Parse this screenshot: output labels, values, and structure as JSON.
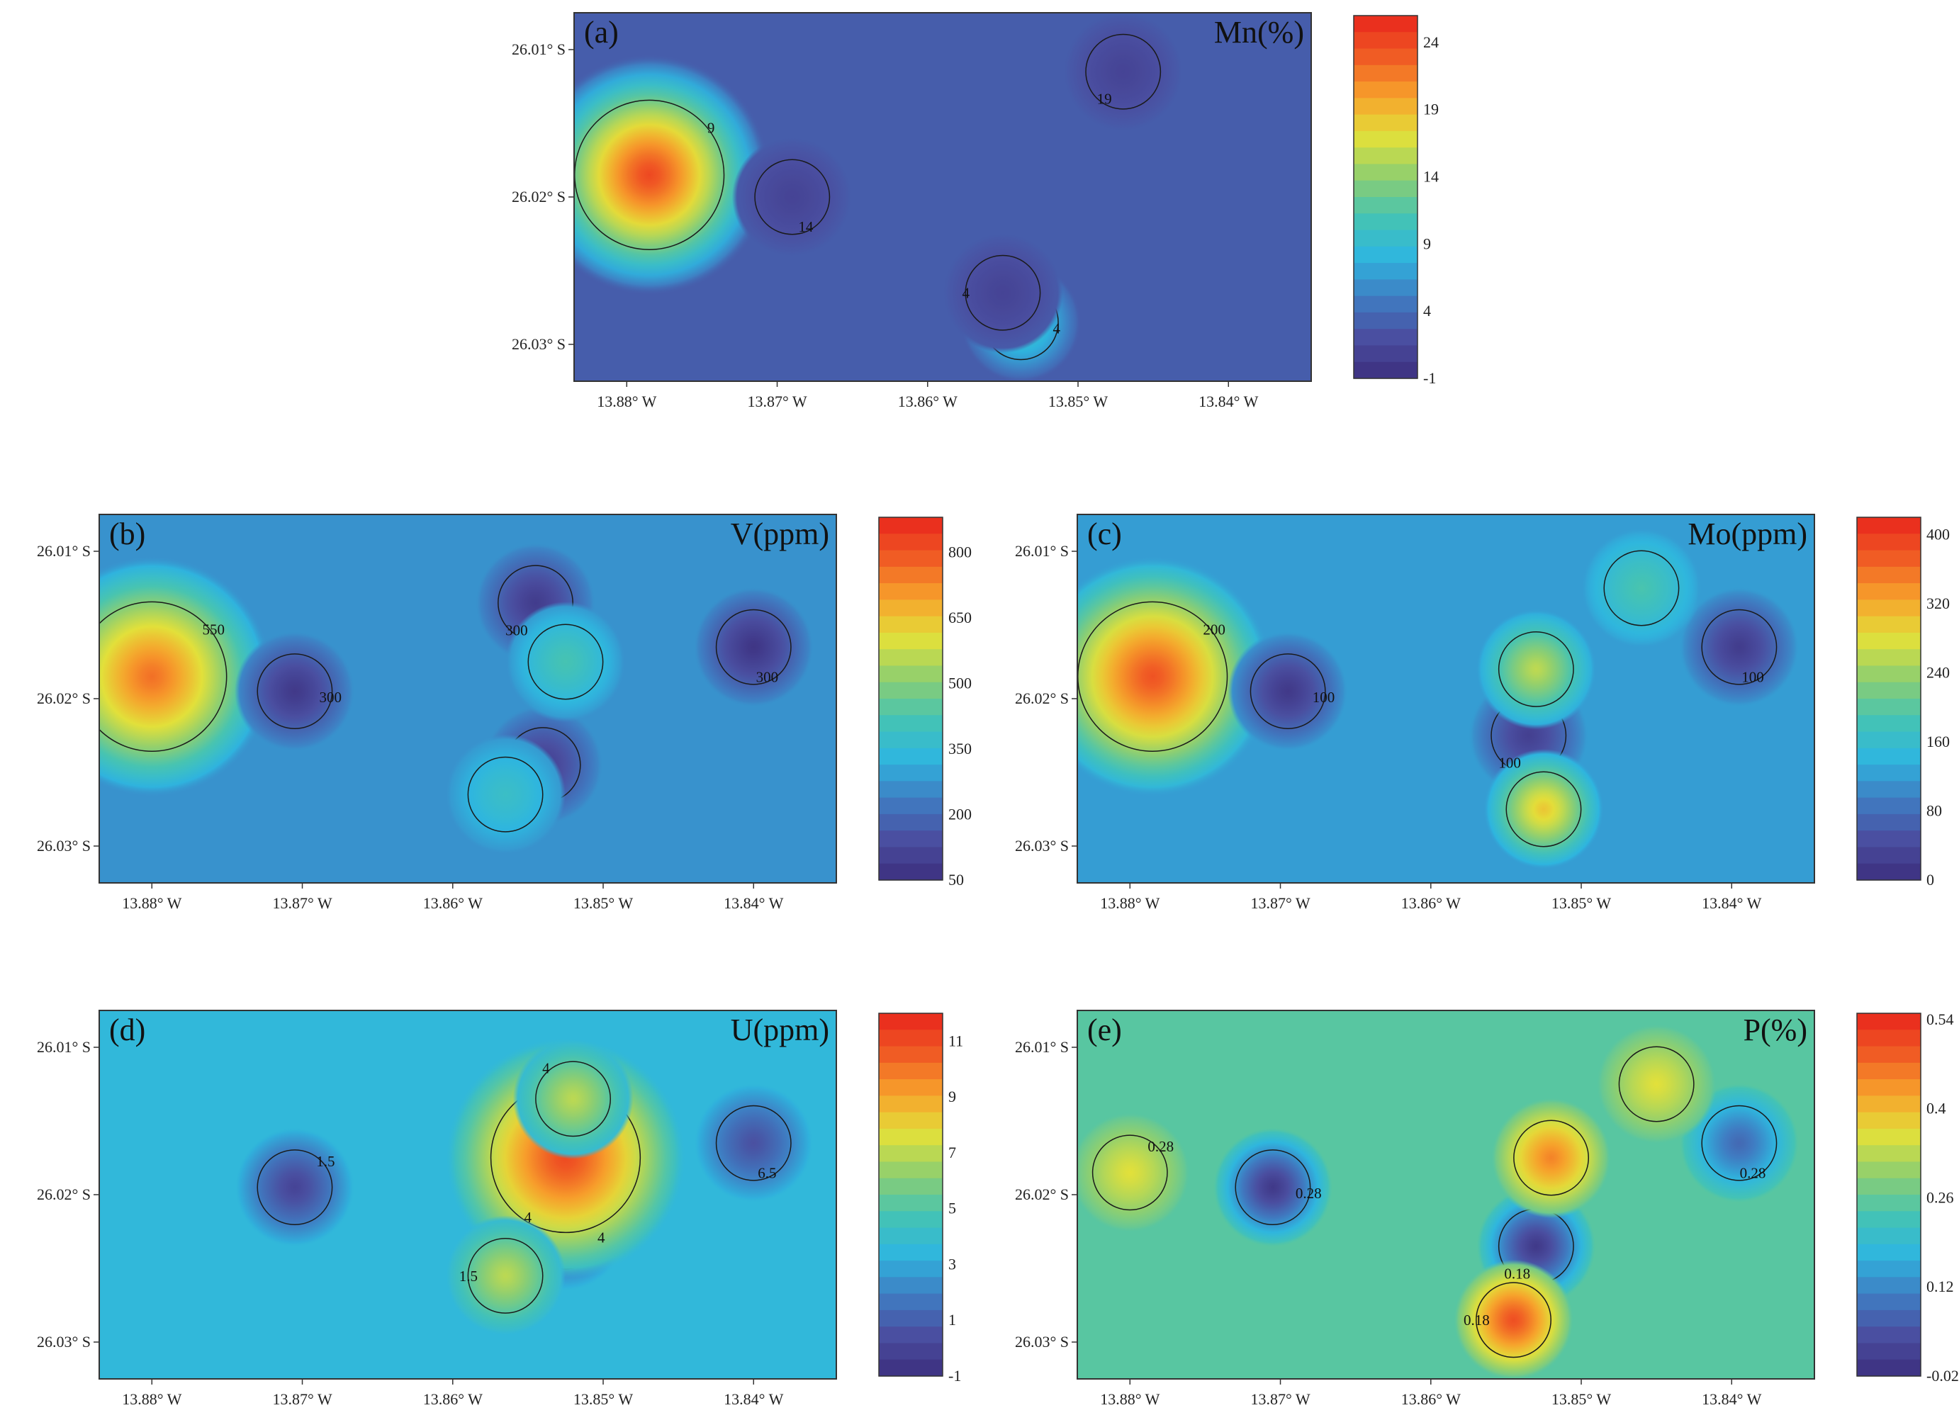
{
  "figure": {
    "panels": [
      {
        "id": "a",
        "letter": "(a)",
        "title": "Mn(%)",
        "cbar_ticks": [
          "24",
          "19",
          "14",
          "9",
          "4",
          "-1"
        ],
        "xticks": [
          "13.88° W",
          "13.87° W",
          "13.86° W",
          "13.85° W",
          "13.84° W"
        ],
        "yticks": [
          "26.01° S",
          "26.02° S",
          "26.03° S"
        ],
        "contour_labels": [
          "9",
          "4",
          "14",
          "19",
          "4"
        ]
      },
      {
        "id": "b",
        "letter": "(b)",
        "title": "V(ppm)",
        "cbar_ticks": [
          "800",
          "650",
          "500",
          "350",
          "200",
          "50"
        ],
        "xticks": [
          "13.88° W",
          "13.87° W",
          "13.86° W",
          "13.85° W",
          "13.84° W"
        ],
        "yticks": [
          "26.01° S",
          "26.02° S",
          "26.03° S"
        ],
        "contour_labels": [
          "550",
          "300",
          "300",
          "300"
        ]
      },
      {
        "id": "c",
        "letter": "(c)",
        "title": "Mo(ppm)",
        "cbar_ticks": [
          "400",
          "320",
          "240",
          "160",
          "80",
          "0"
        ],
        "xticks": [
          "13.88° W",
          "13.87° W",
          "13.86° W",
          "13.85° W",
          "13.84° W"
        ],
        "yticks": [
          "26.01° S",
          "26.02° S",
          "26.03° S"
        ],
        "contour_labels": [
          "200",
          "100",
          "100",
          "100"
        ]
      },
      {
        "id": "d",
        "letter": "(d)",
        "title": "U(ppm)",
        "cbar_ticks": [
          "11",
          "9",
          "7",
          "5",
          "3",
          "1",
          "-1"
        ],
        "xticks": [
          "13.88° W",
          "13.87° W",
          "13.86° W",
          "13.85° W",
          "13.84° W"
        ],
        "yticks": [
          "26.01° S",
          "26.02° S",
          "26.03° S"
        ],
        "contour_labels": [
          "1.5",
          "4",
          "6.5",
          "4",
          "1.5",
          "4"
        ]
      },
      {
        "id": "e",
        "letter": "(e)",
        "title": "P(%)",
        "cbar_ticks": [
          "0.54",
          "0.4",
          "0.26",
          "0.12",
          "-0.02"
        ],
        "xticks": [
          "13.88° W",
          "13.87° W",
          "13.86° W",
          "13.85° W",
          "13.84° W"
        ],
        "yticks": [
          "26.01° S",
          "26.02° S",
          "26.03° S"
        ],
        "contour_labels": [
          "0.28",
          "0.28",
          "0.28",
          "0.18",
          "0.18"
        ]
      }
    ]
  },
  "chart_data": [
    {
      "type": "heatmap",
      "title": "Mn(%)",
      "panel": "(a)",
      "xlabel": "",
      "ylabel": "",
      "x_ticks": [
        "13.88° W",
        "13.87° W",
        "13.86° W",
        "13.85° W",
        "13.84° W"
      ],
      "y_ticks": [
        "26.01° S",
        "26.02° S",
        "26.03° S"
      ],
      "colorbar": {
        "min": -1,
        "max": 26,
        "ticks": [
          24,
          19,
          14,
          9,
          4,
          -1
        ]
      },
      "contour_levels": [
        4,
        9,
        14,
        19
      ],
      "hotspots": [
        {
          "lon": -13.8785,
          "lat": -26.0185,
          "value": 24
        },
        {
          "lon": -13.8538,
          "lat": -26.0285,
          "value": 11
        },
        {
          "lon": -13.869,
          "lat": -26.02,
          "value": 1
        },
        {
          "lon": -13.847,
          "lat": -26.0115,
          "value": 1
        },
        {
          "lon": -13.855,
          "lat": -26.0265,
          "value": 1
        }
      ],
      "background": 3
    },
    {
      "type": "heatmap",
      "title": "V(ppm)",
      "panel": "(b)",
      "xlabel": "",
      "ylabel": "",
      "x_ticks": [
        "13.88° W",
        "13.87° W",
        "13.86° W",
        "13.85° W",
        "13.84° W"
      ],
      "y_ticks": [
        "26.01° S",
        "26.02° S",
        "26.03° S"
      ],
      "colorbar": {
        "min": 50,
        "max": 880,
        "ticks": [
          800,
          650,
          500,
          350,
          200,
          50
        ]
      },
      "contour_levels": [
        300,
        550
      ],
      "hotspots": [
        {
          "lon": -13.88,
          "lat": -26.0185,
          "value": 760
        },
        {
          "lon": -13.8705,
          "lat": -26.0195,
          "value": 80
        },
        {
          "lon": -13.84,
          "lat": -26.0165,
          "value": 70
        },
        {
          "lon": -13.8545,
          "lat": -26.0135,
          "value": 90
        },
        {
          "lon": -13.854,
          "lat": -26.0245,
          "value": 100
        },
        {
          "lon": -13.8525,
          "lat": -26.0175,
          "value": 420
        },
        {
          "lon": -13.8565,
          "lat": -26.0265,
          "value": 380
        }
      ],
      "background": 270
    },
    {
      "type": "heatmap",
      "title": "Mo(ppm)",
      "panel": "(c)",
      "xlabel": "",
      "ylabel": "",
      "x_ticks": [
        "13.88° W",
        "13.87° W",
        "13.86° W",
        "13.85° W",
        "13.84° W"
      ],
      "y_ticks": [
        "26.01° S",
        "26.02° S",
        "26.03° S"
      ],
      "colorbar": {
        "min": 0,
        "max": 420,
        "ticks": [
          400,
          320,
          240,
          160,
          80,
          0
        ]
      },
      "contour_levels": [
        100,
        200
      ],
      "hotspots": [
        {
          "lon": -13.8785,
          "lat": -26.0185,
          "value": 380
        },
        {
          "lon": -13.8695,
          "lat": -26.0195,
          "value": 15
        },
        {
          "lon": -13.8395,
          "lat": -26.0165,
          "value": 20
        },
        {
          "lon": -13.8535,
          "lat": -26.0225,
          "value": 25
        },
        {
          "lon": -13.8525,
          "lat": -26.0275,
          "value": 300
        },
        {
          "lon": -13.853,
          "lat": -26.018,
          "value": 260
        },
        {
          "lon": -13.846,
          "lat": -26.0125,
          "value": 190
        }
      ],
      "background": 120
    },
    {
      "type": "heatmap",
      "title": "U(ppm)",
      "panel": "(d)",
      "xlabel": "",
      "ylabel": "",
      "x_ticks": [
        "13.88° W",
        "13.87° W",
        "13.86° W",
        "13.85° W",
        "13.84° W"
      ],
      "y_ticks": [
        "26.01° S",
        "26.02° S",
        "26.03° S"
      ],
      "colorbar": {
        "min": -1,
        "max": 12,
        "ticks": [
          11,
          9,
          7,
          5,
          3,
          1,
          -1
        ]
      },
      "contour_levels": [
        1.5,
        4,
        6.5
      ],
      "hotspots": [
        {
          "lon": -13.8705,
          "lat": -26.0195,
          "value": 0
        },
        {
          "lon": -13.8525,
          "lat": -26.0225,
          "value": 0.5
        },
        {
          "lon": -13.84,
          "lat": -26.0165,
          "value": 0.5
        },
        {
          "lon": -13.8525,
          "lat": -26.0175,
          "value": 11
        },
        {
          "lon": -13.8565,
          "lat": -26.0255,
          "value": 7
        },
        {
          "lon": -13.852,
          "lat": -26.0135,
          "value": 7
        }
      ],
      "background": 3.5
    },
    {
      "type": "heatmap",
      "title": "P(%)",
      "panel": "(e)",
      "xlabel": "",
      "ylabel": "",
      "x_ticks": [
        "13.88° W",
        "13.87° W",
        "13.86° W",
        "13.85° W",
        "13.84° W"
      ],
      "y_ticks": [
        "26.01° S",
        "26.02° S",
        "26.03° S"
      ],
      "colorbar": {
        "min": -0.02,
        "max": 0.55,
        "ticks": [
          0.54,
          0.4,
          0.26,
          0.12,
          -0.02
        ]
      },
      "contour_levels": [
        0.18,
        0.28
      ],
      "hotspots": [
        {
          "lon": -13.88,
          "lat": -26.0185,
          "value": 0.36
        },
        {
          "lon": -13.8705,
          "lat": -26.0195,
          "value": 0.0
        },
        {
          "lon": -13.8395,
          "lat": -26.0165,
          "value": 0.08
        },
        {
          "lon": -13.853,
          "lat": -26.0235,
          "value": 0.0
        },
        {
          "lon": -13.8545,
          "lat": -26.0285,
          "value": 0.5
        },
        {
          "lon": -13.845,
          "lat": -26.0125,
          "value": 0.36
        },
        {
          "lon": -13.852,
          "lat": -26.0175,
          "value": 0.45
        }
      ],
      "background": 0.25
    }
  ],
  "colors": {
    "scale": [
      "#3c2f7e",
      "#4a4ea0",
      "#3f7cc2",
      "#2eb6df",
      "#45c3b3",
      "#8fcf6f",
      "#e2e03a",
      "#f7a12b",
      "#f05a24",
      "#e8251c"
    ],
    "contour": "#1a1a1a",
    "frame": "#333333"
  }
}
